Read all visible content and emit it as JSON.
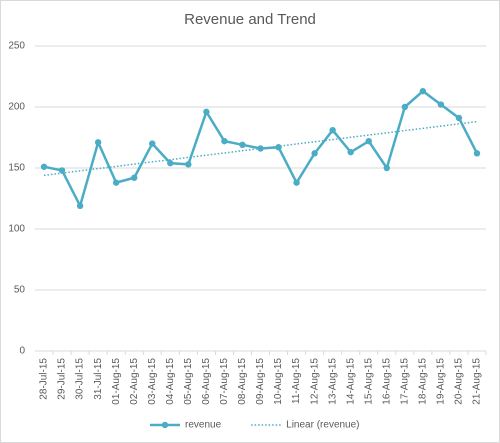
{
  "chart_data": {
    "type": "line",
    "title": "Revenue and Trend",
    "categories": [
      "28-Jul-15",
      "29-Jul-15",
      "30-Jul-15",
      "31-Jul-15",
      "01-Aug-15",
      "02-Aug-15",
      "03-Aug-15",
      "04-Aug-15",
      "05-Aug-15",
      "06-Aug-15",
      "07-Aug-15",
      "08-Aug-15",
      "09-Aug-15",
      "10-Aug-15",
      "11-Aug-15",
      "12-Aug-15",
      "13-Aug-15",
      "14-Aug-15",
      "15-Aug-15",
      "16-Aug-15",
      "17-Aug-15",
      "18-Aug-15",
      "19-Aug-15",
      "20-Aug-15",
      "21-Aug-15"
    ],
    "series": [
      {
        "name": "revenue",
        "color": "#4bacc6",
        "line_style": "solid",
        "markers": true,
        "values": [
          151,
          148,
          119,
          171,
          138,
          142,
          170,
          154,
          153,
          196,
          172,
          169,
          166,
          167,
          138,
          162,
          181,
          163,
          172,
          150,
          200,
          213,
          202,
          191,
          162
        ]
      },
      {
        "name": "Linear (revenue)",
        "color": "#4bacc6",
        "line_style": "dotted",
        "markers": false,
        "values": [
          144,
          145.8,
          147.7,
          149.5,
          151.3,
          153.2,
          155,
          156.8,
          158.7,
          160.5,
          162.3,
          164.2,
          166,
          167.8,
          169.7,
          171.5,
          173.3,
          175.2,
          177,
          178.8,
          180.7,
          182.5,
          184.3,
          186.2,
          188
        ]
      }
    ],
    "ylim": [
      0,
      250
    ],
    "yticks": [
      0,
      50,
      100,
      150,
      200,
      250
    ],
    "grid": true,
    "legend": "bottom"
  }
}
